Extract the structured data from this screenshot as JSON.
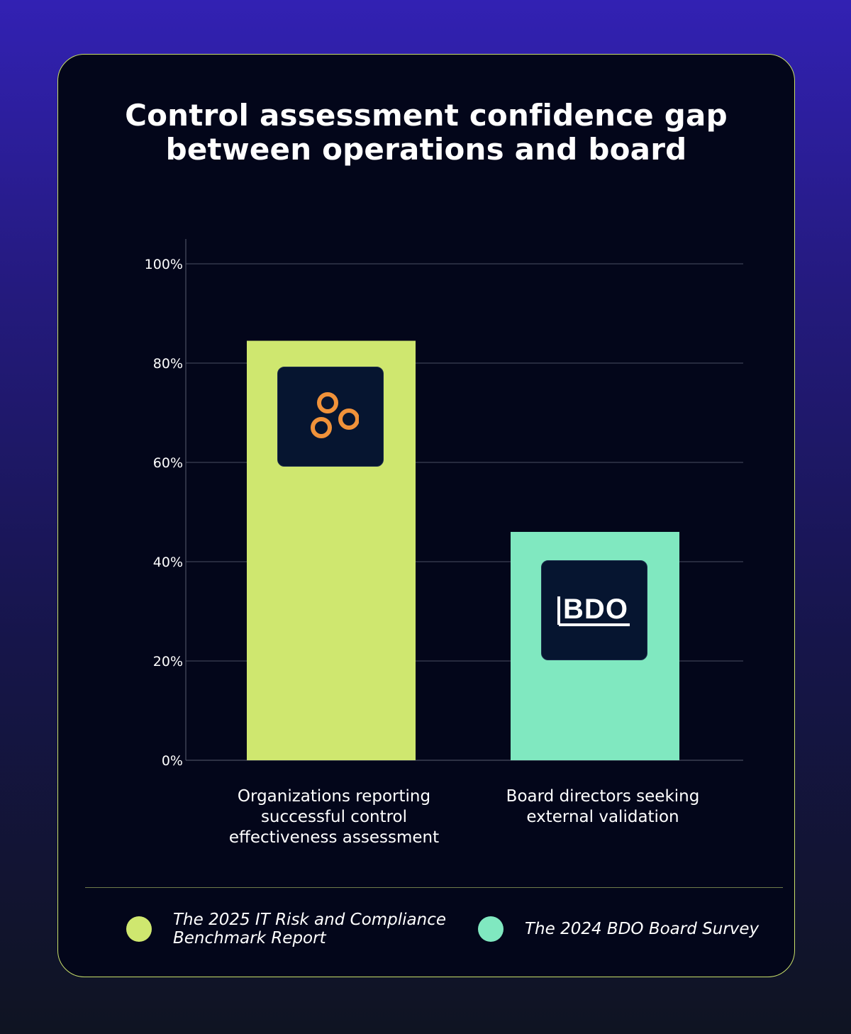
{
  "chart_data": {
    "type": "bar",
    "title": [
      "Control assessment confidence gap",
      "between operations and board"
    ],
    "categories": [
      "Organizations reporting\nsuccessful control\neffectiveness assessment",
      "Board directors seeking\nexternal validation"
    ],
    "values": [
      84.5,
      46
    ],
    "bar_colors": [
      "#cfe76f",
      "#80e8c0"
    ],
    "yticks": [
      "0%",
      "20%",
      "40%",
      "60%",
      "80%",
      "100%"
    ],
    "ylim": [
      0,
      105
    ],
    "grid": true,
    "legend_position": "bottom",
    "legend": [
      {
        "label": "The 2025 IT Risk and Compliance\nBenchmark Report",
        "color": "#cfe76f"
      },
      {
        "label": "The 2024 BDO Board Survey",
        "color": "#80e8c0"
      }
    ]
  },
  "logos": {
    "first_bar": "three-rings-logo-icon",
    "second_bar": "BDO"
  },
  "colors": {
    "card_background": "#03061a",
    "card_border": "#c9e06a",
    "logo_orange": "#f0923a",
    "logo_box": "#061530"
  }
}
